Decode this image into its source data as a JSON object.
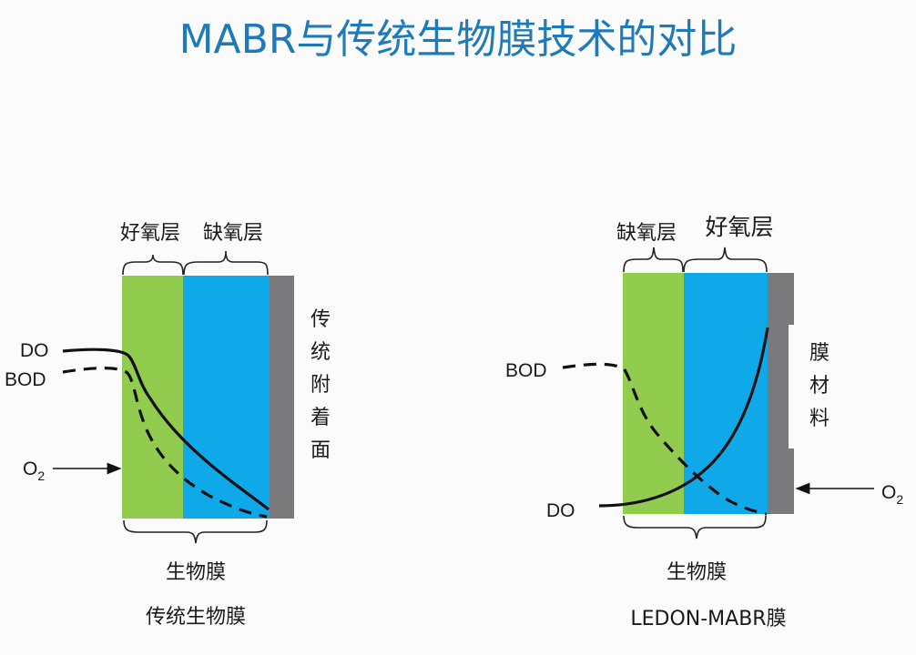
{
  "title": "MABR与传统生物膜技术的对比",
  "colors": {
    "aerobic_green": "#92cc4f",
    "water_blue": "#0fa9ea",
    "surface_gray": "#7a7a7c",
    "title_blue": "#1f7bb8"
  },
  "left": {
    "caption": "传统生物膜",
    "layer_labels": [
      "好氧层",
      "缺氧层"
    ],
    "surface_label": [
      "传",
      "统",
      "附",
      "着",
      "面"
    ],
    "biofilm_label": "生物膜",
    "do_label": "DO",
    "bod_label": "BOD",
    "o2_label": "O",
    "o2_sub": "2"
  },
  "right": {
    "caption": "LEDON-MABR膜",
    "layer_labels": [
      "缺氧层",
      "好氧层"
    ],
    "surface_label": [
      "膜",
      "材",
      "料"
    ],
    "biofilm_label": "生物膜",
    "do_label": "DO",
    "bod_label": "BOD",
    "o2_label": "O",
    "o2_sub": "2"
  }
}
